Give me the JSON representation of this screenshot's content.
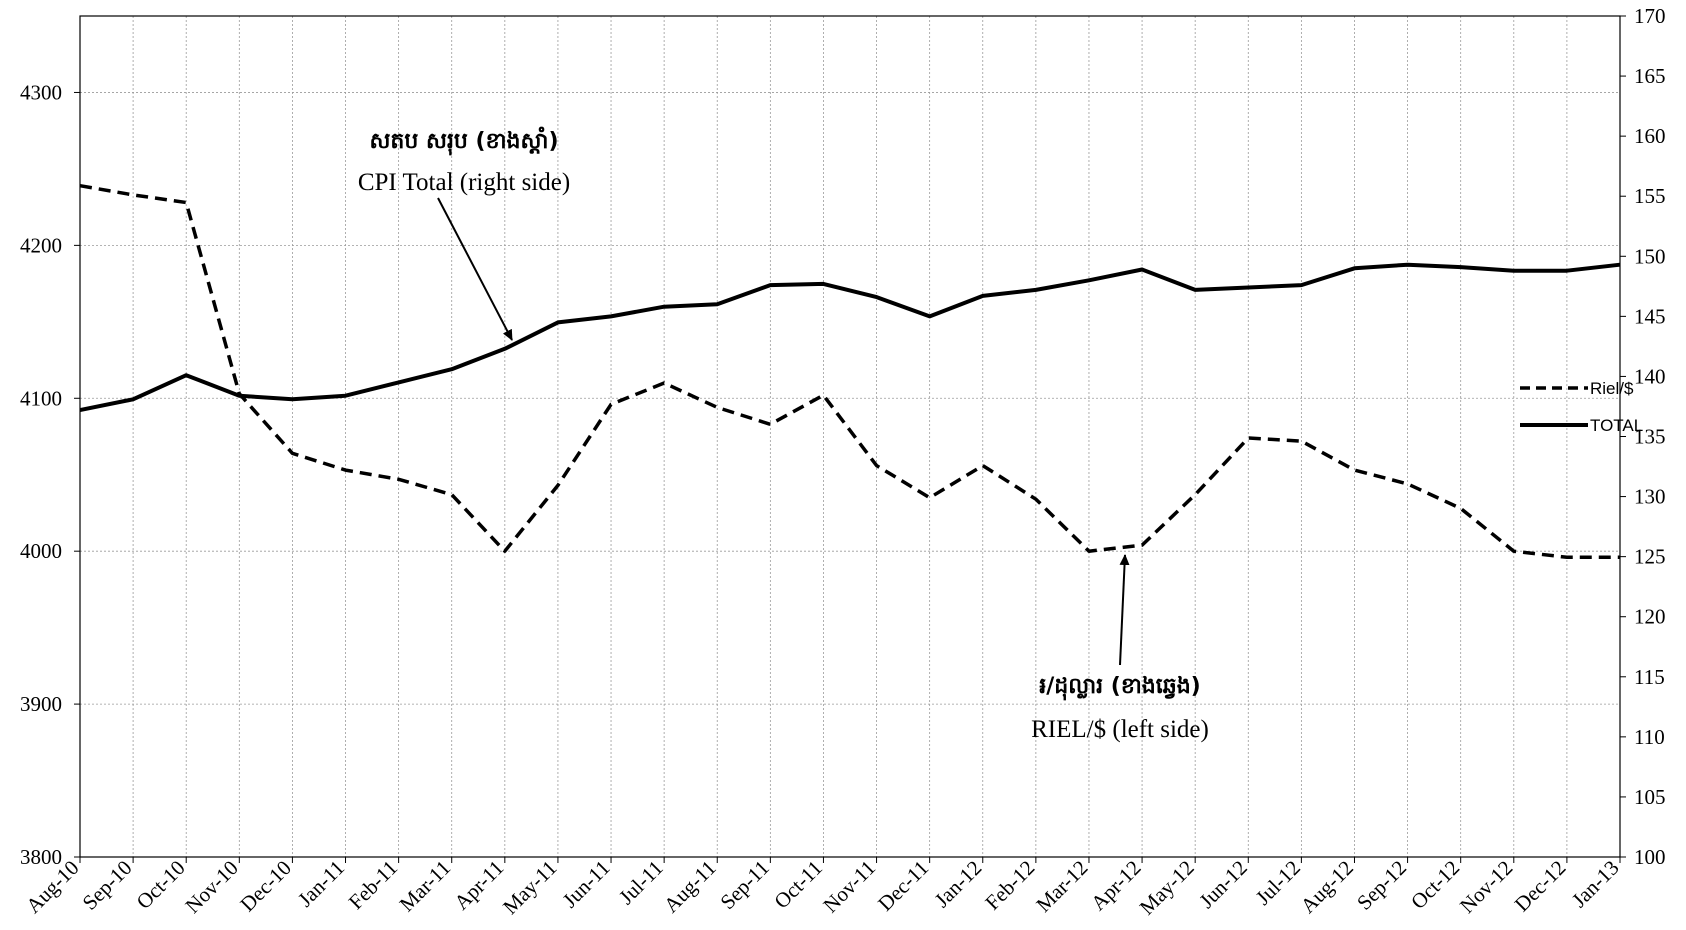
{
  "chart_data": {
    "type": "line",
    "x": [
      "Aug-10",
      "Sep-10",
      "Oct-10",
      "Nov-10",
      "Dec-10",
      "Jan-11",
      "Feb-11",
      "Mar-11",
      "Apr-11",
      "May-11",
      "Jun-11",
      "Jul-11",
      "Aug-11",
      "Sep-11",
      "Oct-11",
      "Nov-11",
      "Dec-11",
      "Jan-12",
      "Feb-12",
      "Mar-12",
      "Apr-12",
      "May-12",
      "Jun-12",
      "Jul-12",
      "Aug-12",
      "Sep-12",
      "Oct-12",
      "Nov-12",
      "Dec-12",
      "Jan-13"
    ],
    "series": [
      {
        "name": "Riel/$",
        "axis": "left",
        "style": "dashed",
        "values": [
          4239,
          4233,
          4228,
          4103,
          4064,
          4053,
          4047,
          4037,
          4000,
          4043,
          4096,
          4110,
          4094,
          4083,
          4102,
          4056,
          4035,
          4056,
          4034,
          4000,
          4004,
          4037,
          4074,
          4072,
          4053,
          4044,
          4028,
          4000,
          3996,
          3996
        ]
      },
      {
        "name": "TOTAL",
        "axis": "right",
        "style": "solid",
        "values": [
          137.2,
          138.1,
          140.1,
          138.4,
          138.1,
          138.4,
          139.5,
          140.6,
          142.3,
          144.5,
          145.0,
          145.8,
          146.0,
          147.6,
          147.7,
          146.6,
          145.0,
          146.7,
          147.2,
          148.0,
          148.9,
          147.2,
          147.4,
          147.6,
          149.0,
          149.3,
          149.1,
          148.8,
          148.8,
          149.3
        ]
      }
    ],
    "y_left": {
      "ylim": [
        3800,
        4350
      ],
      "ticks": [
        "3800",
        "3900",
        "4000",
        "4100",
        "4200",
        "4300"
      ]
    },
    "y_right": {
      "ylim": [
        100,
        170
      ],
      "ticks": [
        "100",
        "105",
        "110",
        "115",
        "120",
        "125",
        "130",
        "135",
        "140",
        "145",
        "150",
        "155",
        "160",
        "165",
        "170"
      ]
    },
    "grid": true,
    "legend": {
      "placement": "right",
      "entries": [
        "Riel/$",
        "TOTAL"
      ]
    },
    "annotations": [
      {
        "id": "cpi",
        "khmer": "សតប សរុប (ខាងស្តាំ)",
        "english": "CPI Total (right side)"
      },
      {
        "id": "riel",
        "khmer": "៛/ដុល្លារ (ខាងឆ្វេង)",
        "english": "RIEL/$ (left side)"
      }
    ]
  }
}
